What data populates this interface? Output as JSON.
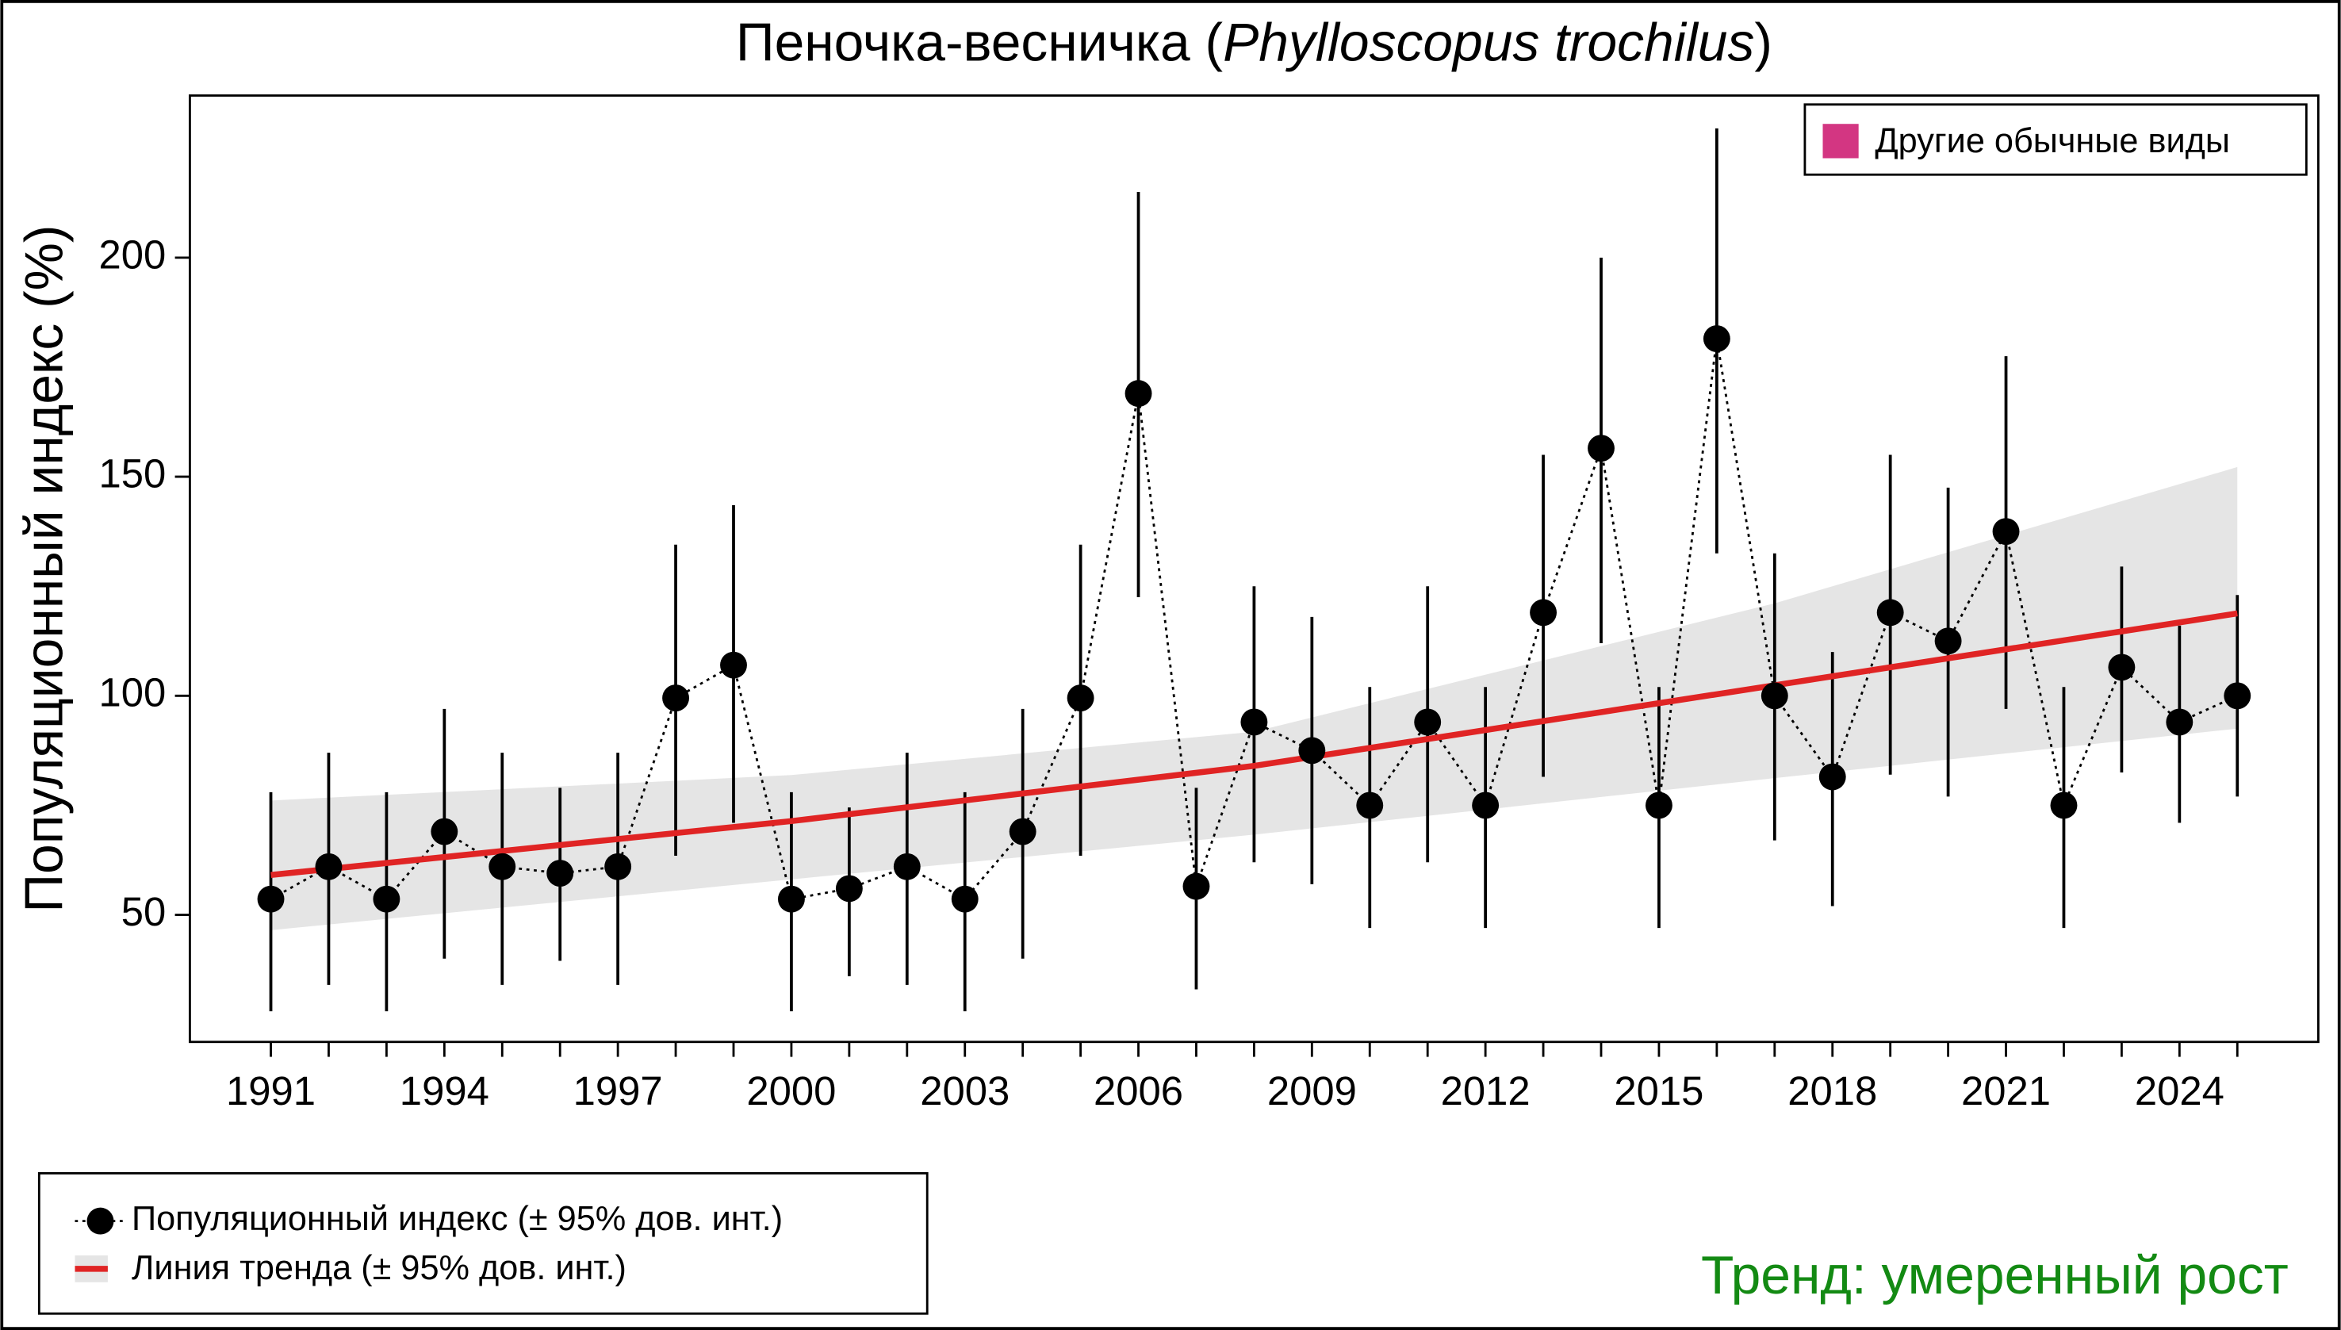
{
  "chart_data": {
    "type": "line",
    "title_parts": [
      "Пеночка-весничка (",
      "Phylloscopus trochilus",
      ")"
    ],
    "y_label": "Популяционный индекс (%)",
    "x": [
      1991,
      1992,
      1993,
      1994,
      1995,
      1996,
      1997,
      1998,
      1999,
      2000,
      2001,
      2002,
      2003,
      2004,
      2005,
      2006,
      2007,
      2008,
      2009,
      2010,
      2011,
      2012,
      2013,
      2014,
      2015,
      2016,
      2017,
      2018,
      2019,
      2020,
      2021,
      2022,
      2023,
      2024,
      2025
    ],
    "series": [
      {
        "name": "Популяционный индекс (± 95% дов. инт.)",
        "color": "#000000",
        "values": [
          53.6,
          61,
          53.6,
          69,
          61,
          59.5,
          61,
          99.5,
          107,
          53.6,
          56,
          61,
          53.6,
          69,
          99.5,
          169,
          56.5,
          94,
          87.5,
          75,
          94,
          75,
          119,
          156.5,
          75,
          181.5,
          100,
          81.5,
          119,
          112.5,
          137.5,
          75,
          106.5,
          94,
          100
        ],
        "lower": [
          28,
          34,
          28,
          40,
          34,
          39.5,
          34,
          63.5,
          71,
          28,
          36,
          34,
          28,
          40,
          63.5,
          122.5,
          33,
          62,
          57,
          47,
          62,
          47,
          81.5,
          112,
          47,
          132.5,
          67,
          52,
          82,
          77,
          97,
          47,
          82.5,
          71,
          77
        ],
        "upper": [
          78,
          87,
          78,
          97,
          87,
          79,
          87,
          134.5,
          143.5,
          78,
          74.5,
          87,
          78,
          97,
          134.5,
          215,
          79,
          125,
          118,
          102,
          125,
          102,
          155,
          200,
          102,
          229.5,
          132.5,
          110,
          155,
          147.5,
          177.5,
          102,
          129.5,
          116,
          123
        ]
      }
    ],
    "trend": {
      "name": "Линия тренда (± 95% дов. инт.)",
      "color": "#e02424",
      "band_color": "#e5e5e5",
      "x": [
        1991,
        2000,
        2008,
        2017,
        2025
      ],
      "values": [
        59.1,
        71.4,
        84,
        102.4,
        118.8
      ],
      "lower": [
        46.5,
        58.1,
        68.3,
        81.2,
        92.5
      ],
      "upper": [
        76.1,
        81.9,
        91.8,
        121.1,
        152.2
      ]
    },
    "xlim": [
      1989.6,
      2026.4
    ],
    "xticks": [
      1991,
      1994,
      1997,
      2000,
      2003,
      2006,
      2009,
      2012,
      2015,
      2018,
      2021,
      2024
    ],
    "ylim": [
      21,
      237
    ],
    "yticks": [
      50,
      100,
      150,
      200
    ],
    "group_legend": {
      "label": "Другие обычные виды",
      "color": "#d33682"
    },
    "annotation": {
      "text": "Тренд: умеренный рост",
      "color": "#138a13"
    }
  }
}
